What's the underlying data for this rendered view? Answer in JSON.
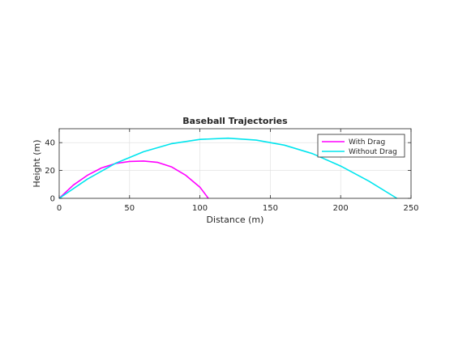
{
  "chart_data": {
    "type": "line",
    "title": "Baseball Trajectories",
    "xlabel": "Distance (m)",
    "ylabel": "Height (m)",
    "xlim": [
      0,
      250
    ],
    "ylim": [
      0,
      50
    ],
    "xticks": [
      "0",
      "50",
      "100",
      "150",
      "200",
      "250"
    ],
    "yticks": [
      "0",
      "20",
      "40"
    ],
    "grid": true,
    "legend_position": "top-right",
    "series": [
      {
        "name": "With Drag",
        "color": "#ff00ff",
        "x": [
          0,
          10,
          20,
          30,
          40,
          50,
          60,
          70,
          80,
          90,
          100,
          106
        ],
        "y": [
          0,
          9.5,
          16.5,
          21.8,
          25.0,
          26.5,
          26.8,
          25.8,
          22.5,
          16.5,
          8.0,
          0
        ]
      },
      {
        "name": "Without Drag",
        "color": "#00e5ee",
        "x": [
          0,
          20,
          40,
          60,
          80,
          100,
          120,
          140,
          160,
          180,
          200,
          220,
          240
        ],
        "y": [
          0,
          13.8,
          25.1,
          33.5,
          39.3,
          42.3,
          43.2,
          41.8,
          38.2,
          32.1,
          23.2,
          12.4,
          0
        ]
      }
    ]
  }
}
